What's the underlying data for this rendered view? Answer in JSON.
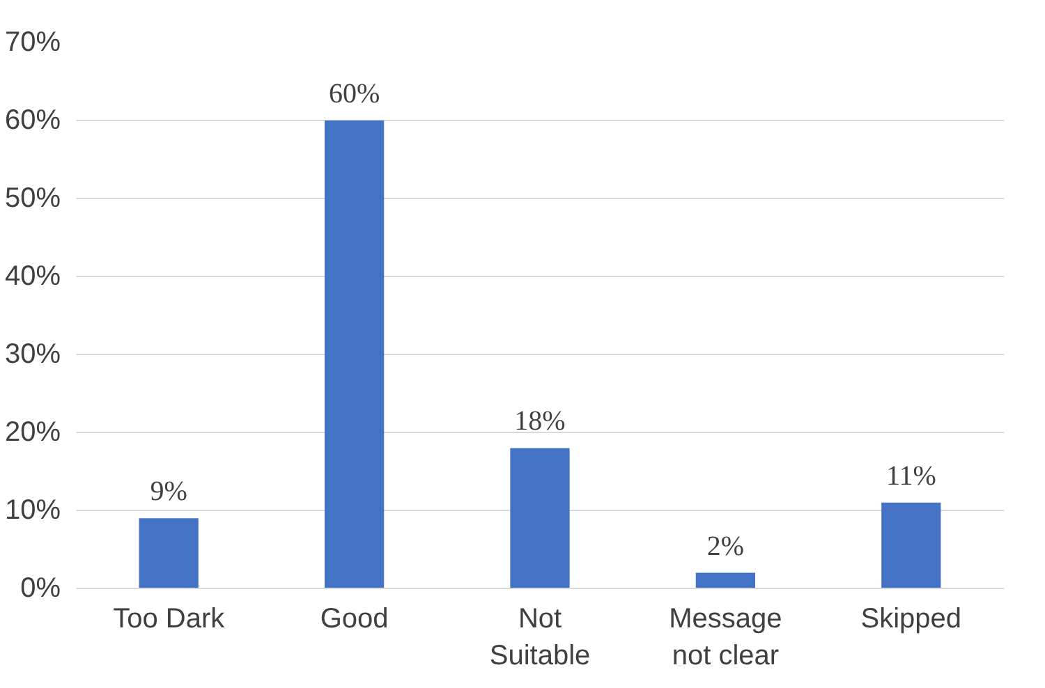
{
  "chart_data": {
    "type": "bar",
    "categories": [
      "Too Dark",
      "Good",
      "Not Suitable",
      "Message not clear",
      "Skipped"
    ],
    "values": [
      9,
      60,
      18,
      2,
      11
    ],
    "value_labels": [
      "9%",
      "60%",
      "18%",
      "2%",
      "11%"
    ],
    "color": "#4472c4",
    "ylim": [
      0,
      70
    ],
    "yticks": [
      {
        "value": 0,
        "label": "0%"
      },
      {
        "value": 10,
        "label": "10%"
      },
      {
        "value": 20,
        "label": "20%"
      },
      {
        "value": 30,
        "label": "30%"
      },
      {
        "value": 40,
        "label": "40%"
      },
      {
        "value": 50,
        "label": "50%"
      },
      {
        "value": 60,
        "label": "60%"
      },
      {
        "value": 70,
        "label": "70%"
      }
    ],
    "grid": "y"
  }
}
